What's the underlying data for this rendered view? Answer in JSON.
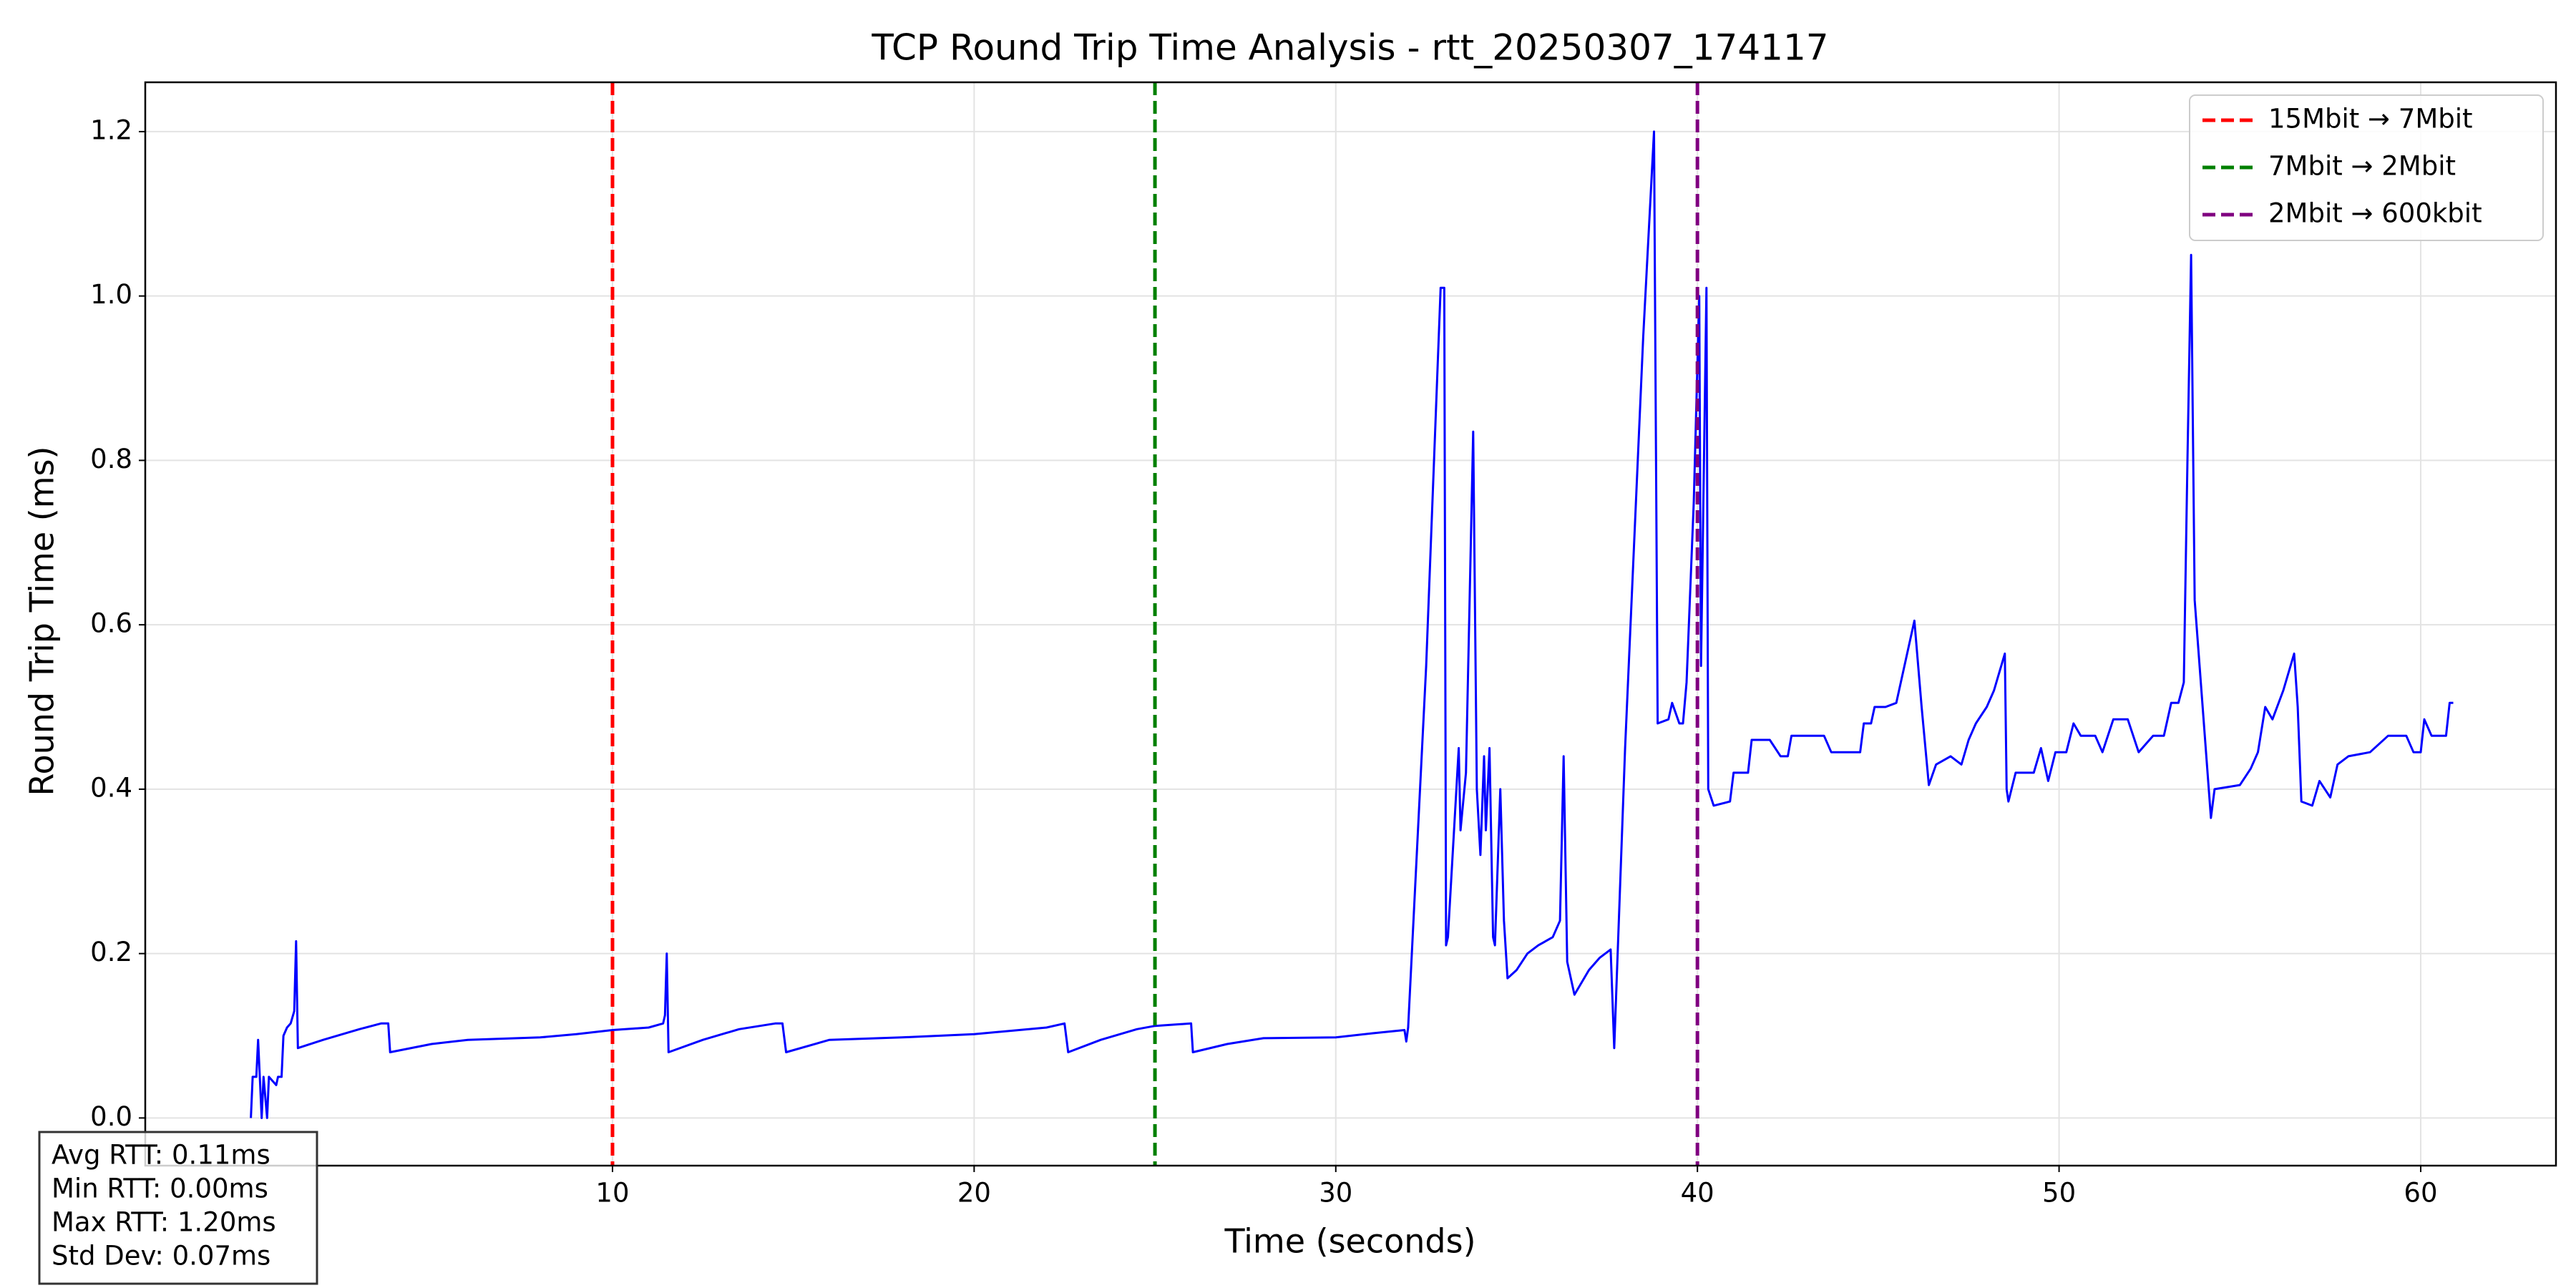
{
  "chart_data": {
    "type": "line",
    "title": "TCP Round Trip Time Analysis - rtt_20250307_174117",
    "x_label": "Time (seconds)",
    "y_label": "Round Trip Time (ms)",
    "color": "blue",
    "x": [
      0,
      0.05,
      0.15,
      0.2,
      0.3,
      0.35,
      0.45,
      0.5,
      0.7,
      0.75,
      0.85,
      0.9,
      1.0,
      1.1,
      1.2,
      1.25,
      1.3,
      2,
      3,
      3.6,
      3.8,
      3.85,
      5,
      6,
      8,
      9,
      10,
      11,
      11.4,
      11.45,
      11.5,
      11.55,
      12.5,
      13.5,
      14.5,
      14.7,
      14.8,
      16,
      18,
      20,
      22,
      22.5,
      22.6,
      23.5,
      24.5,
      25,
      26,
      26.05,
      27,
      28,
      30,
      31,
      31.9,
      31.95,
      32,
      32.5,
      32.9,
      33,
      33.05,
      33.1,
      33.4,
      33.45,
      33.6,
      33.8,
      33.9,
      34,
      34.1,
      34.15,
      34.25,
      34.35,
      34.4,
      34.55,
      34.65,
      34.75,
      35,
      35.3,
      35.6,
      36,
      36.2,
      36.3,
      36.4,
      36.6,
      37,
      37.3,
      37.6,
      37.7,
      38,
      38.5,
      38.8,
      38.9,
      39.2,
      39.3,
      39.5,
      39.6,
      39.7,
      39.9,
      40.05,
      40.1,
      40.25,
      40.3,
      40.45,
      40.9,
      41,
      41.4,
      41.5,
      42,
      42.3,
      42.5,
      42.6,
      43,
      43.5,
      43.7,
      44.5,
      44.6,
      44.8,
      44.9,
      45.2,
      45.5,
      46,
      46.2,
      46.4,
      46.6,
      47,
      47.3,
      47.5,
      47.7,
      48,
      48.2,
      48.5,
      48.55,
      48.6,
      48.8,
      49.3,
      49.5,
      49.7,
      49.9,
      50.2,
      50.4,
      50.6,
      51,
      51.2,
      51.5,
      51.9,
      52.2,
      52.6,
      52.9,
      53.1,
      53.3,
      53.45,
      53.55,
      53.65,
      53.75,
      54.2,
      54.3,
      55,
      55.3,
      55.5,
      55.7,
      55.9,
      56.2,
      56.5,
      56.6,
      56.7,
      57,
      57.2,
      57.5,
      57.7,
      58,
      58.6,
      59.1,
      59.6,
      59.8,
      60,
      60.1,
      60.3,
      60.7,
      60.8,
      60.9
    ],
    "values": [
      0.0,
      0.05,
      0.05,
      0.095,
      0.0,
      0.05,
      0.0,
      0.05,
      0.04,
      0.05,
      0.05,
      0.1,
      0.11,
      0.115,
      0.13,
      0.215,
      0.085,
      0.095,
      0.108,
      0.115,
      0.115,
      0.08,
      0.09,
      0.095,
      0.098,
      0.102,
      0.107,
      0.11,
      0.115,
      0.125,
      0.2,
      0.08,
      0.095,
      0.108,
      0.115,
      0.115,
      0.08,
      0.095,
      0.098,
      0.102,
      0.11,
      0.115,
      0.08,
      0.095,
      0.108,
      0.112,
      0.115,
      0.08,
      0.09,
      0.097,
      0.098,
      0.103,
      0.107,
      0.093,
      0.11,
      0.55,
      1.01,
      1.01,
      0.21,
      0.22,
      0.45,
      0.35,
      0.42,
      0.835,
      0.4,
      0.32,
      0.44,
      0.35,
      0.45,
      0.22,
      0.21,
      0.4,
      0.24,
      0.17,
      0.18,
      0.2,
      0.21,
      0.22,
      0.24,
      0.44,
      0.19,
      0.15,
      0.18,
      0.195,
      0.205,
      0.085,
      0.45,
      0.95,
      1.2,
      0.48,
      0.485,
      0.505,
      0.48,
      0.48,
      0.53,
      0.75,
      1.0,
      0.55,
      1.01,
      0.4,
      0.38,
      0.385,
      0.42,
      0.42,
      0.46,
      0.46,
      0.44,
      0.44,
      0.465,
      0.465,
      0.465,
      0.445,
      0.445,
      0.48,
      0.48,
      0.5,
      0.5,
      0.505,
      0.605,
      0.5,
      0.405,
      0.43,
      0.44,
      0.43,
      0.46,
      0.48,
      0.5,
      0.52,
      0.565,
      0.4,
      0.385,
      0.42,
      0.42,
      0.45,
      0.41,
      0.445,
      0.445,
      0.48,
      0.465,
      0.465,
      0.445,
      0.485,
      0.485,
      0.445,
      0.465,
      0.465,
      0.505,
      0.505,
      0.53,
      0.8,
      1.05,
      0.63,
      0.365,
      0.4,
      0.405,
      0.425,
      0.445,
      0.5,
      0.485,
      0.52,
      0.565,
      0.5,
      0.385,
      0.38,
      0.41,
      0.39,
      0.43,
      0.44,
      0.445,
      0.465,
      0.465,
      0.445,
      0.445,
      0.485,
      0.465,
      0.465,
      0.505,
      0.505
    ],
    "vlines": [
      {
        "x": 10,
        "label": "15Mbit → 7Mbit",
        "color": "red"
      },
      {
        "x": 25,
        "label": "7Mbit → 2Mbit",
        "color": "green"
      },
      {
        "x": 40,
        "label": "2Mbit → 600kbit",
        "color": "purple"
      }
    ],
    "legend": "upper right",
    "grid": true,
    "xlim": [
      -2.92,
      63.74
    ],
    "ylim": [
      -0.058,
      1.26
    ],
    "xticks": [
      10,
      20,
      30,
      40,
      50,
      60
    ],
    "yticks": [
      {
        "value": 0,
        "label": "0.0"
      },
      0.2,
      0.4,
      0.6,
      0.8,
      {
        "value": 1,
        "label": "1.0"
      },
      1.2
    ],
    "stats": [
      "Avg RTT: 0.11ms",
      "Min RTT: 0.00ms",
      "Max RTT: 1.20ms",
      "Std Dev: 0.07ms"
    ]
  }
}
